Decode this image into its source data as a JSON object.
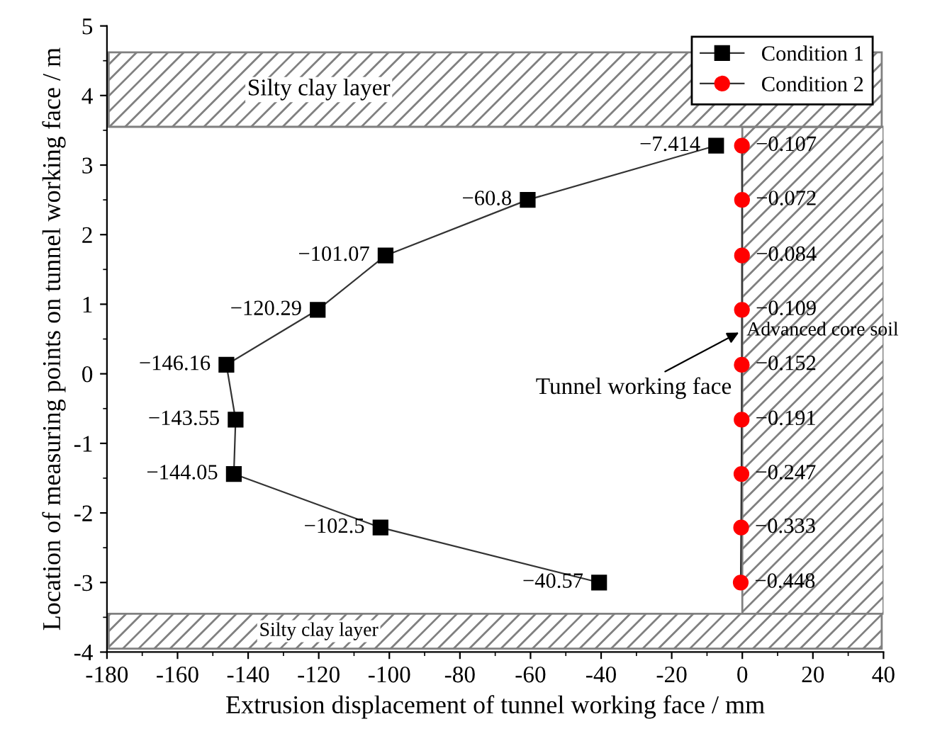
{
  "chart_data": {
    "type": "line",
    "xlabel": "Extrusion displacement of tunnel working face / mm",
    "ylabel": "Location of measuring points on tunnel working face / m",
    "series": [
      {
        "name": "Condition 1",
        "color": "#000000",
        "marker": "square",
        "x": [
          -7.414,
          -60.8,
          -101.07,
          -120.29,
          -146.16,
          -143.55,
          -144.05,
          -102.5,
          -40.57
        ],
        "values": [
          3.28,
          2.5,
          1.7,
          0.92,
          0.13,
          -0.66,
          -1.44,
          -2.21,
          -3.0
        ]
      },
      {
        "name": "Condition 2",
        "color": "#ff0000",
        "marker": "circle",
        "x": [
          -0.107,
          -0.072,
          -0.084,
          -0.109,
          -0.152,
          -0.191,
          -0.247,
          -0.333,
          -0.448
        ],
        "values": [
          3.28,
          2.5,
          1.7,
          0.92,
          0.13,
          -0.66,
          -1.44,
          -2.21,
          -3.0
        ]
      }
    ],
    "xlim": [
      -180,
      40
    ],
    "xticks": [
      -180,
      -160,
      -140,
      -120,
      -100,
      -80,
      -60,
      -40,
      -20,
      0,
      20,
      40
    ],
    "ylim": [
      -4,
      5
    ],
    "yticks": [
      -4,
      -3,
      -2,
      -1,
      0,
      1,
      2,
      3,
      4,
      5
    ],
    "bands": [
      {
        "axis": "y",
        "from": 3.55,
        "to": 4.62,
        "label": "Silty clay layer",
        "color": "#808080"
      },
      {
        "axis": "y",
        "from": -3.95,
        "to": -3.45,
        "label": "Silty clay layer",
        "color": "#808080"
      },
      {
        "axis": "x",
        "from": 0,
        "to": 40,
        "label": "Advanced core soil",
        "color": "#808080"
      }
    ],
    "annotations": [
      {
        "text": "Tunnel working face",
        "x": 0,
        "y": 0.62
      },
      {
        "text": "−7.414",
        "x": -7.414,
        "y": 3.28
      },
      {
        "text": "−60.8",
        "x": -60.8,
        "y": 2.5
      },
      {
        "text": "−101.07",
        "x": -101.07,
        "y": 1.7
      },
      {
        "text": "−120.29",
        "x": -120.29,
        "y": 0.92
      },
      {
        "text": "−146.16",
        "x": -146.16,
        "y": 0.13
      },
      {
        "text": "−143.55",
        "x": -143.55,
        "y": -0.66
      },
      {
        "text": "−144.05",
        "x": -144.05,
        "y": -1.44
      },
      {
        "text": "−102.5",
        "x": -102.5,
        "y": -2.21
      },
      {
        "text": "−40.57",
        "x": -40.57,
        "y": -3.0
      },
      {
        "text": "−0.107",
        "x": -0.107,
        "y": 3.28
      },
      {
        "text": "−0.072",
        "x": -0.072,
        "y": 2.5
      },
      {
        "text": "−0.084",
        "x": -0.084,
        "y": 1.7
      },
      {
        "text": "−0.109",
        "x": -0.109,
        "y": 0.92
      },
      {
        "text": "−0.152",
        "x": -0.152,
        "y": 0.13
      },
      {
        "text": "−0.191",
        "x": -0.191,
        "y": -0.66
      },
      {
        "text": "−0.247",
        "x": -0.247,
        "y": -1.44
      },
      {
        "text": "−0.333",
        "x": -0.333,
        "y": -2.21
      },
      {
        "text": "−0.448",
        "x": -0.448,
        "y": -3.0
      }
    ],
    "legend": "top right",
    "grid": false,
    "line_style": "solid"
  }
}
